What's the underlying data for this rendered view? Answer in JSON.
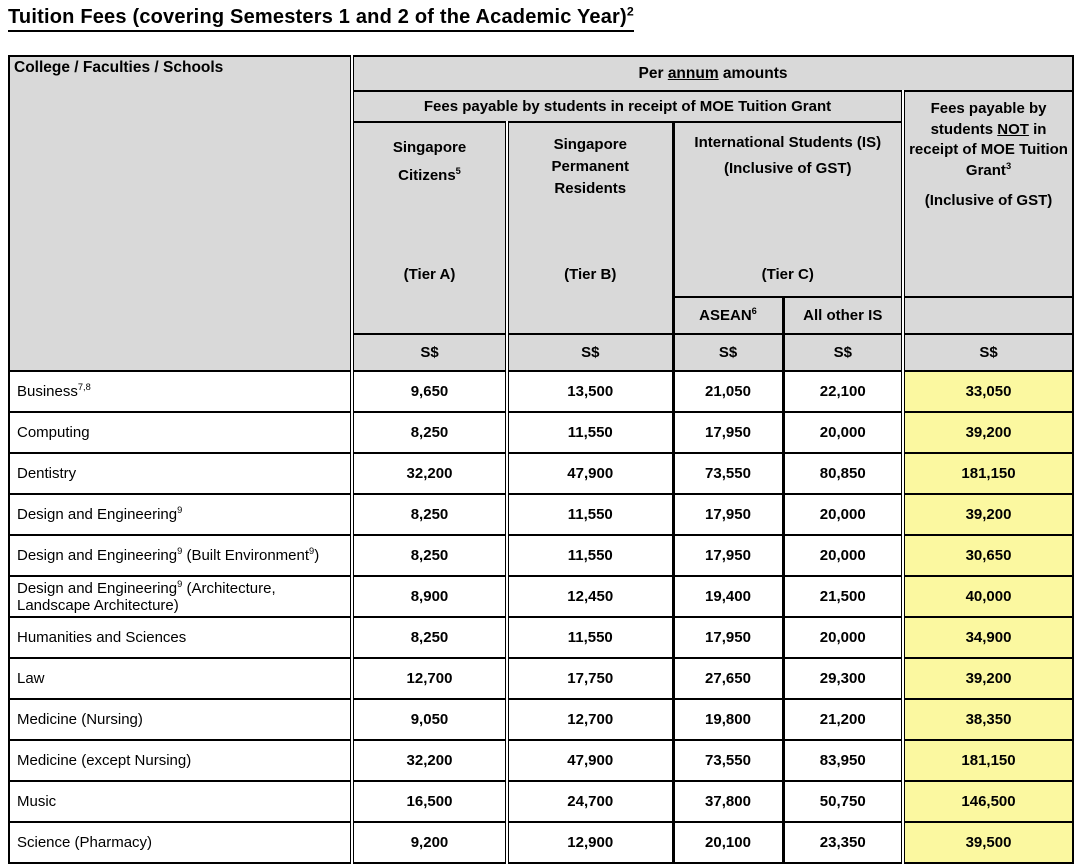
{
  "title": "Tuition Fees (covering Semesters 1 and 2 of the Academic Year)^2^",
  "colors": {
    "header_bg": "#d9d9d9",
    "highlight_bg": "#fbf8a0",
    "border": "#000000"
  },
  "table": {
    "header": {
      "college": "College / Faculties / Schools",
      "per_annum": "Per __annum__ amounts",
      "grant_group": "Fees payable by students in receipt of MOE Tuition Grant",
      "not_grant": "Fees payable by students __NOT__ in receipt of MOE Tuition Grant^3^",
      "not_grant_gst": "(Inclusive of GST)",
      "tier_a_name": "Singapore\nCitizens^5^",
      "tier_a_label": "(Tier A)",
      "tier_b_name": "Singapore\nPermanent\nResidents",
      "tier_b_label": "(Tier B)",
      "tier_c_name": "International Students (IS)",
      "tier_c_gst": "(Inclusive of GST)",
      "tier_c_label": "(Tier C)",
      "asean": "ASEAN^6^",
      "all_other_is": "All other IS",
      "currency": "S$"
    },
    "rows": [
      {
        "name": "Business^7,8^",
        "tier_a": "9,650",
        "tier_b": "13,500",
        "asean": "21,050",
        "other_is": "22,100",
        "not_grant": "33,050"
      },
      {
        "name": "Computing",
        "tier_a": "8,250",
        "tier_b": "11,550",
        "asean": "17,950",
        "other_is": "20,000",
        "not_grant": "39,200"
      },
      {
        "name": "Dentistry",
        "tier_a": "32,200",
        "tier_b": "47,900",
        "asean": "73,550",
        "other_is": "80,850",
        "not_grant": "181,150"
      },
      {
        "name": "Design and Engineering^9^",
        "tier_a": "8,250",
        "tier_b": "11,550",
        "asean": "17,950",
        "other_is": "20,000",
        "not_grant": "39,200"
      },
      {
        "name": "Design and Engineering^9^ (Built Environment^9^)",
        "tier_a": "8,250",
        "tier_b": "11,550",
        "asean": "17,950",
        "other_is": "20,000",
        "not_grant": "30,650"
      },
      {
        "name": "Design and Engineering^9^ (Architecture,\nLandscape Architecture)",
        "tier_a": "8,900",
        "tier_b": "12,450",
        "asean": "19,400",
        "other_is": "21,500",
        "not_grant": "40,000"
      },
      {
        "name": "Humanities and Sciences",
        "tier_a": "8,250",
        "tier_b": "11,550",
        "asean": "17,950",
        "other_is": "20,000",
        "not_grant": "34,900"
      },
      {
        "name": "Law",
        "tier_a": "12,700",
        "tier_b": "17,750",
        "asean": "27,650",
        "other_is": "29,300",
        "not_grant": "39,200"
      },
      {
        "name": "Medicine (Nursing)",
        "tier_a": "9,050",
        "tier_b": "12,700",
        "asean": "19,800",
        "other_is": "21,200",
        "not_grant": "38,350"
      },
      {
        "name": "Medicine (except Nursing)",
        "tier_a": "32,200",
        "tier_b": "47,900",
        "asean": "73,550",
        "other_is": "83,950",
        "not_grant": "181,150"
      },
      {
        "name": "Music",
        "tier_a": "16,500",
        "tier_b": "24,700",
        "asean": "37,800",
        "other_is": "50,750",
        "not_grant": "146,500"
      },
      {
        "name": "Science (Pharmacy)",
        "tier_a": "9,200",
        "tier_b": "12,900",
        "asean": "20,100",
        "other_is": "23,350",
        "not_grant": "39,500"
      }
    ]
  }
}
